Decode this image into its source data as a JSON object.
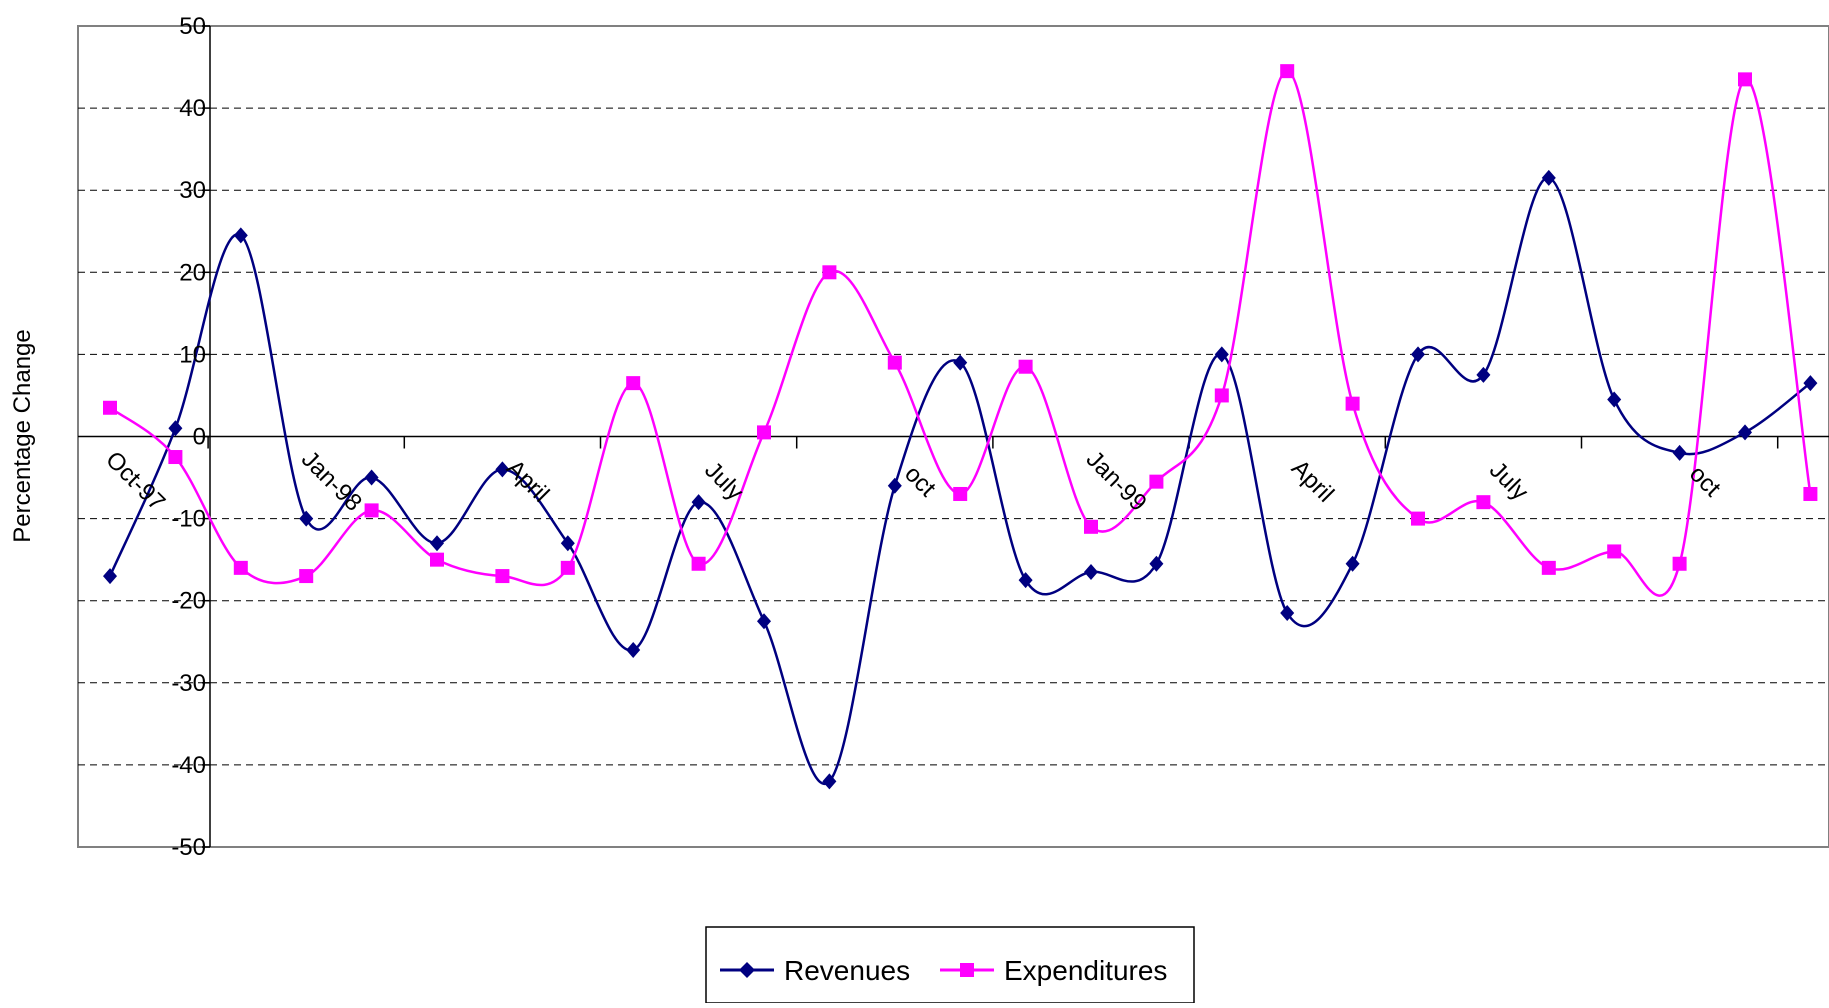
{
  "chart_data": {
    "type": "line",
    "title": "",
    "xlabel": "",
    "ylabel": "Percentage Change",
    "ylim": [
      -50,
      50
    ],
    "y_ticks": [
      50,
      40,
      30,
      20,
      10,
      0,
      -10,
      -20,
      -30,
      -40,
      -50
    ],
    "grid": "horizontal-dashed",
    "smooth": true,
    "x_tick_labels": [
      {
        "index": 0,
        "label": "Oct-97"
      },
      {
        "index": 3,
        "label": "Jan-98"
      },
      {
        "index": 6,
        "label": "April"
      },
      {
        "index": 9,
        "label": "July"
      },
      {
        "index": 12,
        "label": "oct"
      },
      {
        "index": 15,
        "label": "Jan-99"
      },
      {
        "index": 18,
        "label": "April"
      },
      {
        "index": 21,
        "label": "July"
      },
      {
        "index": 24,
        "label": "oct"
      }
    ],
    "series": [
      {
        "name": "Revenues",
        "color": "#000080",
        "marker": "diamond",
        "values": [
          -17,
          1,
          24.5,
          -10,
          -5,
          -13,
          -4,
          -13,
          -26,
          -8,
          -22.5,
          -42,
          -6,
          9,
          -17.5,
          -16.5,
          -15.5,
          10,
          -21.5,
          -15.5,
          10,
          7.5,
          31.5,
          4.5,
          -2,
          0.5,
          6.5
        ]
      },
      {
        "name": "Expenditures",
        "color": "#FF00FF",
        "marker": "square",
        "values": [
          3.5,
          -2.5,
          -16,
          -17,
          -9,
          -15,
          -17,
          -16,
          6.5,
          -15.5,
          0.5,
          20,
          9,
          -7,
          8.5,
          -11,
          -5.5,
          5,
          44.5,
          4,
          -10,
          -8,
          -16,
          -14,
          -15.5,
          43.5,
          -7
        ]
      }
    ],
    "legend": {
      "placement": "bottom-center"
    }
  }
}
